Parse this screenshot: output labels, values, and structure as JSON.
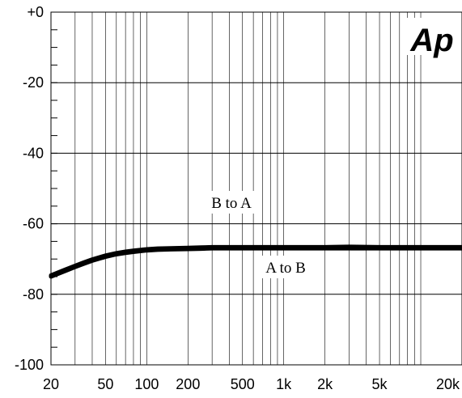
{
  "chart_data": {
    "type": "line",
    "title": "",
    "xlabel": "",
    "ylabel": "",
    "x_scale": "log",
    "xlim": [
      20,
      20000
    ],
    "ylim": [
      -100,
      0
    ],
    "grid": true,
    "x_ticks": [
      {
        "value": 20,
        "label": "20"
      },
      {
        "value": 50,
        "label": "50"
      },
      {
        "value": 100,
        "label": "100"
      },
      {
        "value": 200,
        "label": "200"
      },
      {
        "value": 500,
        "label": "500"
      },
      {
        "value": 1000,
        "label": "1k"
      },
      {
        "value": 2000,
        "label": "2k"
      },
      {
        "value": 5000,
        "label": "5k"
      },
      {
        "value": 20000,
        "label": "20k"
      }
    ],
    "y_ticks": [
      {
        "value": 0,
        "label": "+0"
      },
      {
        "value": -20,
        "label": "-20"
      },
      {
        "value": -40,
        "label": "-40"
      },
      {
        "value": -60,
        "label": "-60"
      },
      {
        "value": -80,
        "label": "-80"
      },
      {
        "value": -100,
        "label": "-100"
      }
    ],
    "series": [
      {
        "color": "#000000",
        "x": [
          20,
          25,
          30,
          35,
          40,
          50,
          60,
          70,
          80,
          100,
          120,
          150,
          200,
          250,
          300,
          500,
          1000,
          2000,
          3000,
          5000,
          10000,
          20000
        ],
        "y": [
          -75,
          -73.5,
          -72.3,
          -71.3,
          -70.5,
          -69.4,
          -68.7,
          -68.3,
          -68,
          -67.6,
          -67.4,
          -67.3,
          -67.2,
          -67.1,
          -67,
          -67,
          -67,
          -67,
          -67,
          -67,
          -67,
          -67
        ]
      },
      {
        "color": "#000000",
        "x": [
          20,
          25,
          30,
          35,
          40,
          50,
          60,
          70,
          80,
          100,
          120,
          150,
          200,
          250,
          300,
          500,
          1000,
          2000,
          3000,
          5000,
          10000,
          20000
        ],
        "y": [
          -74.6,
          -73.1,
          -71.9,
          -70.9,
          -70.1,
          -69,
          -68.3,
          -67.9,
          -67.6,
          -67.2,
          -67,
          -66.9,
          -66.8,
          -66.7,
          -66.6,
          -66.6,
          -66.6,
          -66.6,
          -66.5,
          -66.6,
          -66.6,
          -66.6
        ]
      }
    ],
    "annotations": [
      {
        "text": "B to A",
        "x": 480,
        "y": -58.5
      },
      {
        "text": "A to B",
        "x": 2000,
        "y": -74
      }
    ],
    "logo_text": "Ap"
  }
}
